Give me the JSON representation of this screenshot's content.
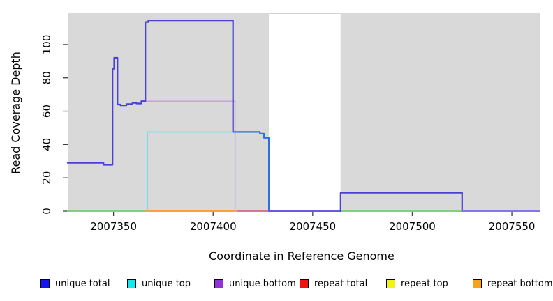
{
  "chart_data": {
    "type": "line",
    "title": "",
    "xlabel": "Coordinate in Reference Genome",
    "ylabel": "Read Coverage Depth",
    "xlim": [
      2007327,
      2007564
    ],
    "ylim": [
      0,
      119.2
    ],
    "xticks": [
      2007350,
      2007400,
      2007450,
      2007500,
      2007550
    ],
    "yticks": [
      0,
      20,
      40,
      60,
      80,
      100
    ],
    "plot_background": "#d9d9d9",
    "grid": false,
    "gap_region": {
      "x0": 2007428,
      "x1": 2007464,
      "fill": "#ffffff",
      "top_border": "#8a8a8a"
    },
    "series": [
      {
        "name": "baseline-green-left",
        "color": "#82cf82",
        "width": 2,
        "points": [
          [
            2007327,
            0
          ],
          [
            2007366,
            0
          ]
        ]
      },
      {
        "name": "baseline-orange",
        "color": "#ff9e3d",
        "width": 2,
        "points": [
          [
            2007366,
            0
          ],
          [
            2007411,
            0
          ]
        ]
      },
      {
        "name": "baseline-yellow",
        "color": "#f0d232",
        "width": 2,
        "points": [
          [
            2007411,
            0
          ],
          [
            2007412.5,
            0
          ]
        ]
      },
      {
        "name": "unique-bottom",
        "color": "#c29fdb",
        "width": 1.4,
        "points": [
          [
            2007366,
            66
          ],
          [
            2007411,
            66
          ],
          [
            2007411,
            0
          ],
          [
            2007428,
            0
          ]
        ]
      },
      {
        "name": "baseline-red",
        "color": "#d06280",
        "width": 1.6,
        "points": [
          [
            2007412.5,
            0
          ],
          [
            2007428,
            0
          ]
        ]
      },
      {
        "name": "unique-top",
        "color": "#5fe2e8",
        "width": 1.6,
        "points": [
          [
            2007367,
            0
          ],
          [
            2007367,
            47.5
          ],
          [
            2007410,
            47.5
          ]
        ]
      },
      {
        "name": "unique-total",
        "color": "#4a3fd8",
        "width": 2.2,
        "points": [
          [
            2007327,
            29
          ],
          [
            2007345,
            29
          ],
          [
            2007345,
            27.8
          ],
          [
            2007349.5,
            27.8
          ],
          [
            2007349.5,
            85.5
          ],
          [
            2007350.3,
            85.5
          ],
          [
            2007350.3,
            92
          ],
          [
            2007352,
            92
          ],
          [
            2007352,
            64
          ],
          [
            2007353.5,
            64
          ],
          [
            2007353.5,
            63.5
          ],
          [
            2007356.5,
            63.5
          ],
          [
            2007356.5,
            64.3
          ],
          [
            2007359.5,
            64.3
          ],
          [
            2007359.5,
            65
          ],
          [
            2007361.5,
            65
          ],
          [
            2007361.5,
            64.6
          ],
          [
            2007364,
            64.6
          ],
          [
            2007364,
            66
          ],
          [
            2007366,
            66
          ],
          [
            2007366,
            113.5
          ],
          [
            2007367.5,
            113.5
          ],
          [
            2007367.5,
            114.5
          ],
          [
            2007410,
            114.5
          ],
          [
            2007410,
            47.5
          ]
        ]
      },
      {
        "name": "unique-total-descent",
        "color": "#2e6ee8",
        "width": 2.2,
        "points": [
          [
            2007410,
            47.5
          ],
          [
            2007423.5,
            47.5
          ],
          [
            2007423.5,
            46.5
          ],
          [
            2007425.5,
            46.5
          ],
          [
            2007425.5,
            44
          ],
          [
            2007428,
            44
          ],
          [
            2007428,
            0
          ]
        ]
      },
      {
        "name": "baseline-gap",
        "color": "#6a5ae0",
        "width": 2,
        "points": [
          [
            2007428,
            0
          ],
          [
            2007464,
            0
          ]
        ]
      },
      {
        "name": "baseline-green-right",
        "color": "#82cf82",
        "width": 2,
        "points": [
          [
            2007464,
            0
          ],
          [
            2007525,
            0
          ]
        ]
      },
      {
        "name": "unique-total-right",
        "color": "#4a3fd8",
        "width": 2.2,
        "points": [
          [
            2007464,
            0
          ],
          [
            2007464,
            11
          ],
          [
            2007525,
            11
          ],
          [
            2007525,
            0
          ]
        ]
      },
      {
        "name": "baseline-violet-right",
        "color": "#8576e8",
        "width": 2,
        "points": [
          [
            2007525,
            0
          ],
          [
            2007564,
            0
          ]
        ]
      }
    ],
    "legend": {
      "position": "bottom",
      "items": [
        {
          "label": "unique total",
          "color": "#1414ee"
        },
        {
          "label": "unique top",
          "color": "#14e8ee"
        },
        {
          "label": "unique bottom",
          "color": "#9232d8"
        },
        {
          "label": "repeat total",
          "color": "#ee1414"
        },
        {
          "label": "repeat top",
          "color": "#f2f214"
        },
        {
          "label": "repeat bottom",
          "color": "#f5a21c"
        }
      ]
    }
  }
}
